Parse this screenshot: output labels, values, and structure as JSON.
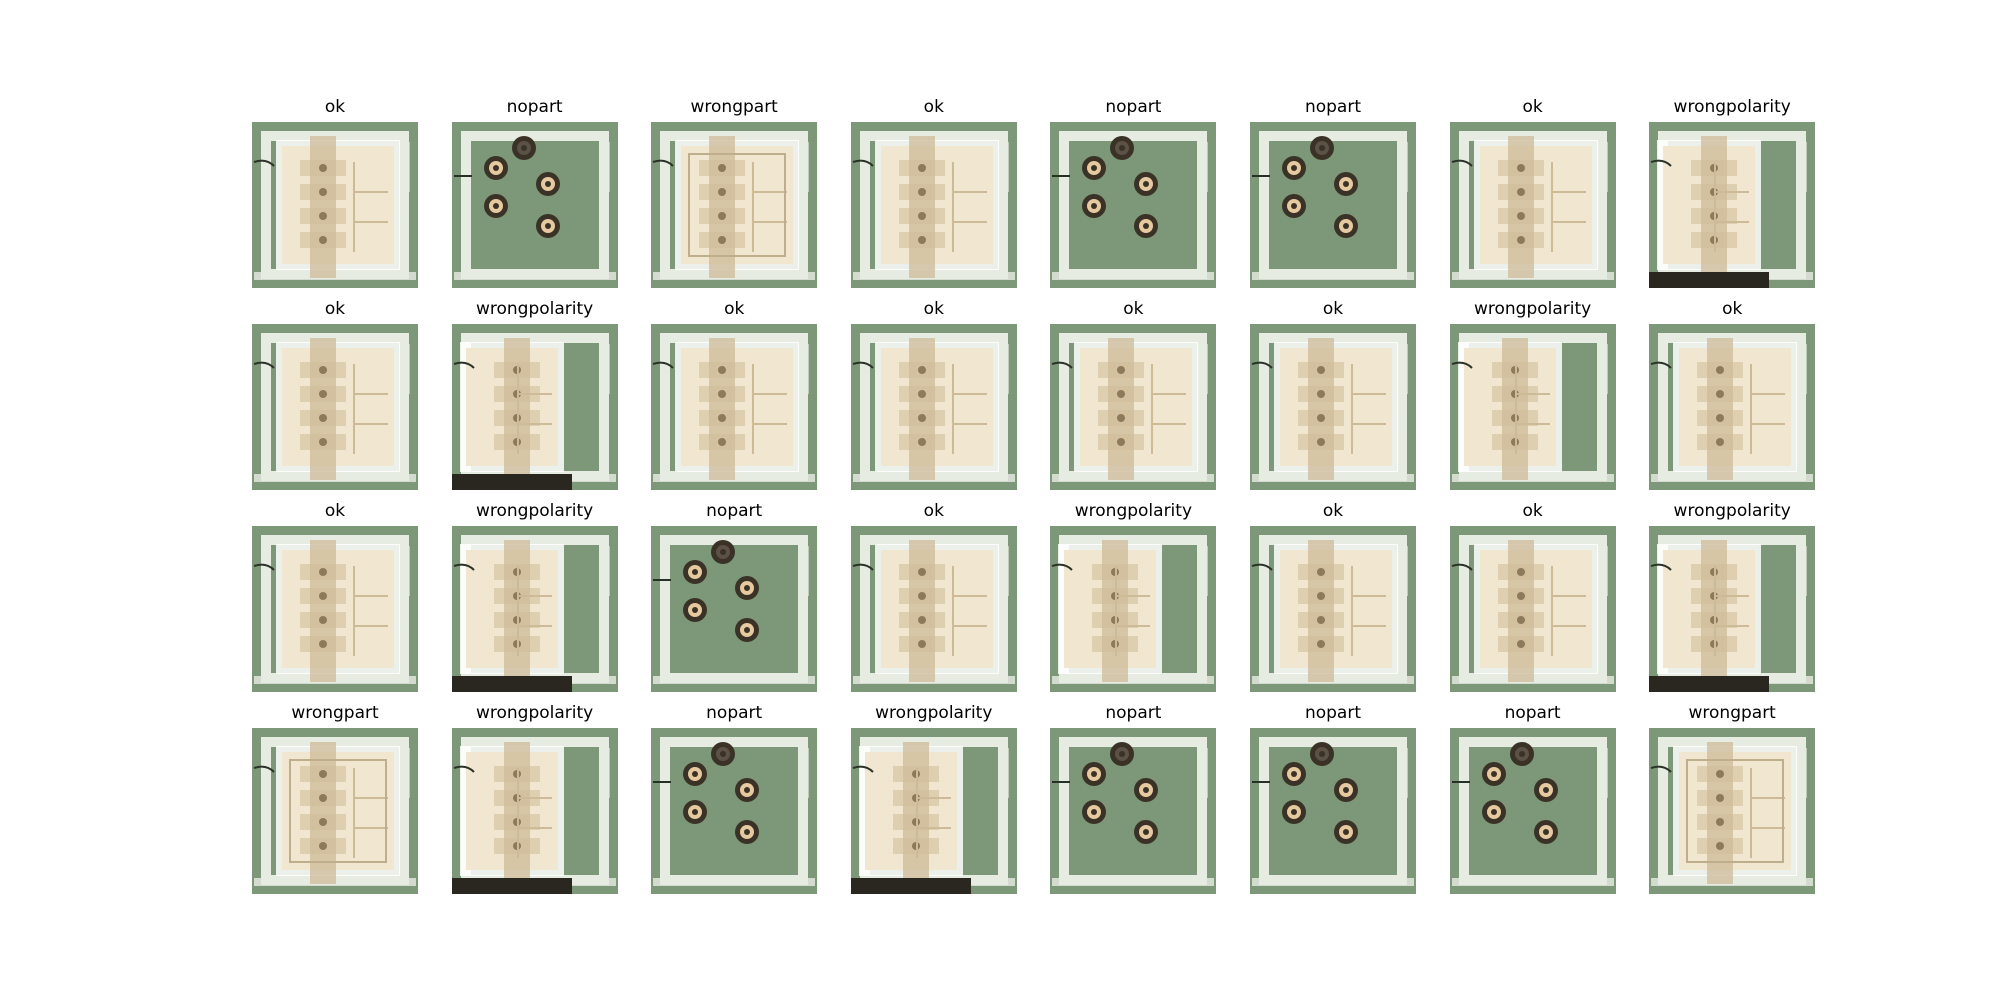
{
  "colors": {
    "pcb_green": "#7d9878",
    "pcb_green_dark": "#5f7a60",
    "silkscreen": "#e7ece2",
    "connector_body": "#f1e6cf",
    "connector_shadow": "#cdbb98",
    "pad_ring": "#3a3226",
    "pad_copper": "#e7c9a0"
  },
  "grid": {
    "rows": [
      [
        "ok",
        "nopart",
        "wrongpart",
        "ok",
        "nopart",
        "nopart",
        "ok",
        "wrongpolarity"
      ],
      [
        "ok",
        "wrongpolarity",
        "ok",
        "ok",
        "ok",
        "ok",
        "wrongpolarity",
        "ok"
      ],
      [
        "ok",
        "wrongpolarity",
        "nopart",
        "ok",
        "wrongpolarity",
        "ok",
        "ok",
        "wrongpolarity"
      ],
      [
        "wrongpart",
        "wrongpolarity",
        "nopart",
        "wrongpolarity",
        "nopart",
        "nopart",
        "nopart",
        "wrongpart"
      ]
    ]
  }
}
